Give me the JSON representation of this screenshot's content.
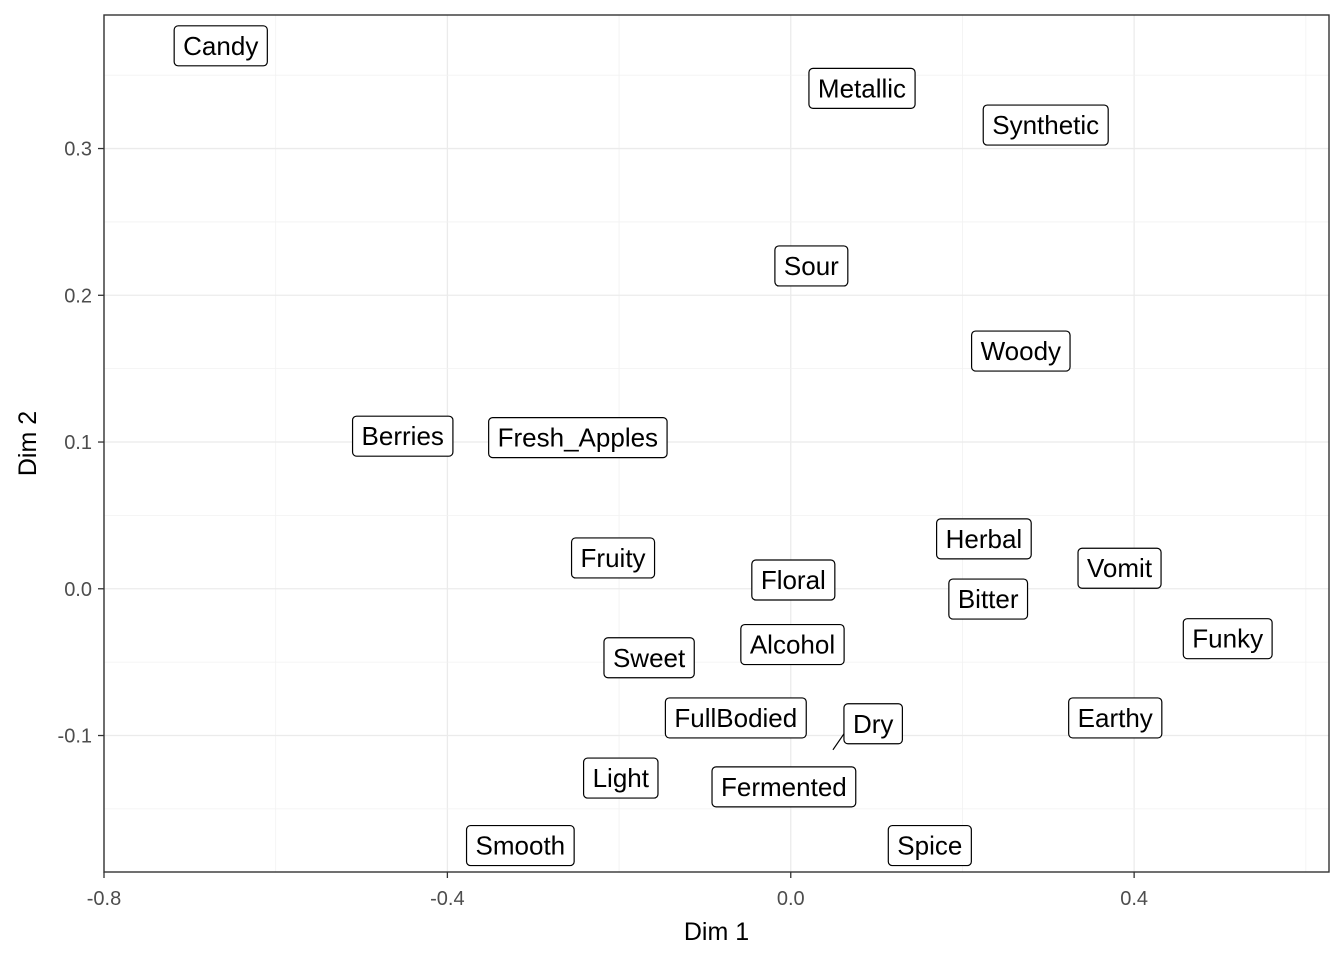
{
  "chart_data": {
    "type": "scatter",
    "title": "",
    "xlabel": "Dim 1",
    "ylabel": "Dim 2",
    "xlim": [
      -0.8,
      0.627
    ],
    "ylim": [
      -0.193,
      0.391
    ],
    "x_ticks": [
      -0.8,
      -0.4,
      0.0,
      0.4
    ],
    "x_tick_labels": [
      "-0.8",
      "-0.4",
      "0.0",
      "0.4"
    ],
    "y_ticks": [
      -0.1,
      0.0,
      0.1,
      0.2,
      0.3
    ],
    "y_tick_labels": [
      "-0.1",
      "0.0",
      "0.1",
      "0.2",
      "0.3"
    ],
    "grid": true,
    "points": [
      {
        "label": "Candy",
        "x": -0.664,
        "y": 0.37
      },
      {
        "label": "Metallic",
        "x": 0.083,
        "y": 0.341
      },
      {
        "label": "Synthetic",
        "x": 0.297,
        "y": 0.316
      },
      {
        "label": "Sour",
        "x": 0.024,
        "y": 0.22
      },
      {
        "label": "Woody",
        "x": 0.268,
        "y": 0.162
      },
      {
        "label": "Berries",
        "x": -0.452,
        "y": 0.104
      },
      {
        "label": "Fresh_Apples",
        "x": -0.248,
        "y": 0.103
      },
      {
        "label": "Fruity",
        "x": -0.207,
        "y": 0.021
      },
      {
        "label": "Herbal",
        "x": 0.225,
        "y": 0.034
      },
      {
        "label": "Vomit",
        "x": 0.383,
        "y": 0.014
      },
      {
        "label": "Floral",
        "x": 0.003,
        "y": 0.006
      },
      {
        "label": "Bitter",
        "x": 0.23,
        "y": -0.007
      },
      {
        "label": "Funky",
        "x": 0.509,
        "y": -0.034
      },
      {
        "label": "Alcohol",
        "x": 0.002,
        "y": -0.038
      },
      {
        "label": "Sweet",
        "x": -0.165,
        "y": -0.047
      },
      {
        "label": "Dry",
        "x": 0.096,
        "y": -0.092
      },
      {
        "label": "Earthy",
        "x": 0.378,
        "y": -0.088
      },
      {
        "label": "FullBodied",
        "x": -0.064,
        "y": -0.088
      },
      {
        "label": "Light",
        "x": -0.198,
        "y": -0.129
      },
      {
        "label": "Fermented",
        "x": -0.008,
        "y": -0.135
      },
      {
        "label": "Smooth",
        "x": -0.315,
        "y": -0.175
      },
      {
        "label": "Spice",
        "x": 0.162,
        "y": -0.175
      }
    ],
    "label_offsets_note": ""
  }
}
